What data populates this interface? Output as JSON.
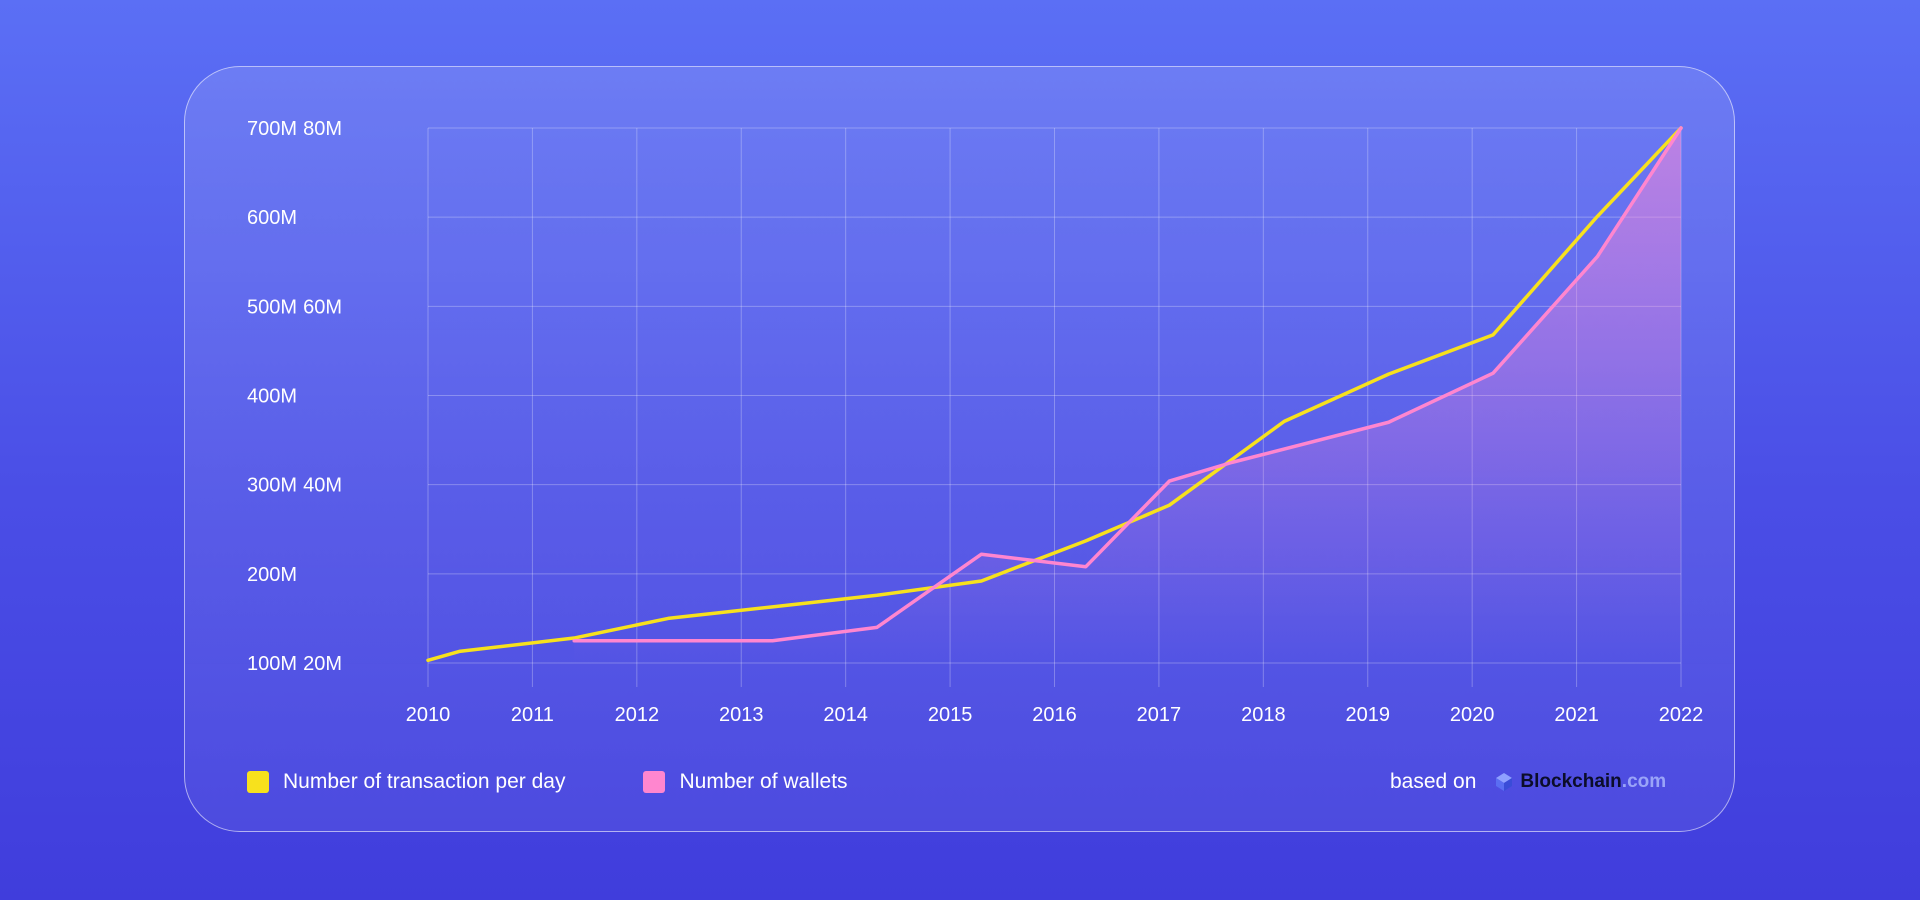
{
  "chart_data": {
    "type": "line",
    "x": [
      2010,
      2011,
      2012,
      2013,
      2014,
      2015,
      2016,
      2017,
      2018,
      2019,
      2020,
      2021,
      2022
    ],
    "xlim": [
      2010,
      2022
    ],
    "left_ticks": [
      "100M",
      "200M",
      "300M",
      "400M",
      "500M",
      "600M",
      "700M"
    ],
    "right_ticks": [
      "20M",
      "",
      "40M",
      "",
      "60M",
      "",
      "80M"
    ],
    "ylim": [
      100,
      700
    ],
    "grid": true,
    "legend_position": "bottom-left",
    "series": [
      {
        "name": "Number of transaction per day",
        "color": "#f7e11d",
        "points": [
          [
            2010,
            103
          ],
          [
            2010.3,
            113
          ],
          [
            2011.4,
            128
          ],
          [
            2012.3,
            150
          ],
          [
            2013.3,
            163
          ],
          [
            2014.3,
            176
          ],
          [
            2015.3,
            192
          ],
          [
            2016.3,
            237
          ],
          [
            2017.1,
            277
          ],
          [
            2018.2,
            371
          ],
          [
            2019.2,
            424
          ],
          [
            2020.2,
            468
          ],
          [
            2021.2,
            601
          ],
          [
            2022,
            700
          ]
        ]
      },
      {
        "name": "Number of wallets",
        "color": "#ff86cf",
        "points": [
          [
            2011.4,
            125
          ],
          [
            2012.3,
            125
          ],
          [
            2013.3,
            125
          ],
          [
            2014.3,
            140
          ],
          [
            2015.3,
            222
          ],
          [
            2016.3,
            208
          ],
          [
            2017.1,
            304
          ],
          [
            2017.7,
            325
          ],
          [
            2019.2,
            370
          ],
          [
            2020.2,
            425
          ],
          [
            2021.2,
            556
          ],
          [
            2022,
            700
          ]
        ]
      }
    ]
  },
  "source": {
    "label": "based on",
    "brand_name": "Blockchain",
    "brand_tld": ".com"
  }
}
